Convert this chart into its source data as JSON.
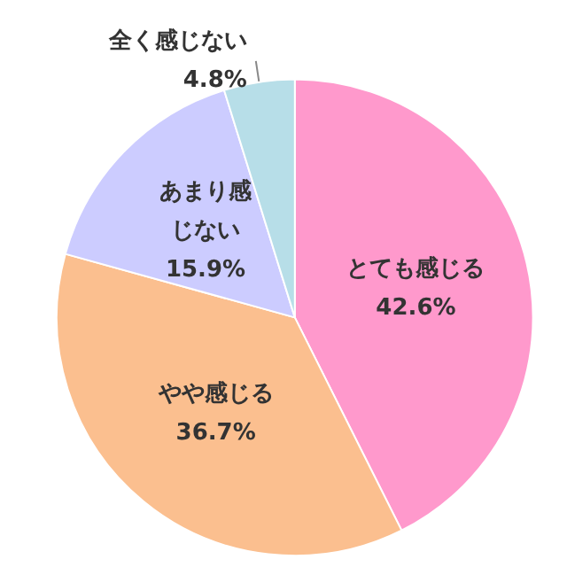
{
  "chart_data": {
    "type": "pie",
    "categories": [
      "とても感じる",
      "やや感じる",
      "あまり感じない",
      "全く感じない"
    ],
    "values": [
      42.6,
      36.7,
      15.9,
      4.8
    ],
    "value_labels": [
      "42.6%",
      "36.7%",
      "15.9%",
      "4.8%"
    ],
    "colors": [
      "#ff99cc",
      "#fbbf8f",
      "#ccccff",
      "#b7dee8"
    ],
    "legend": false
  }
}
